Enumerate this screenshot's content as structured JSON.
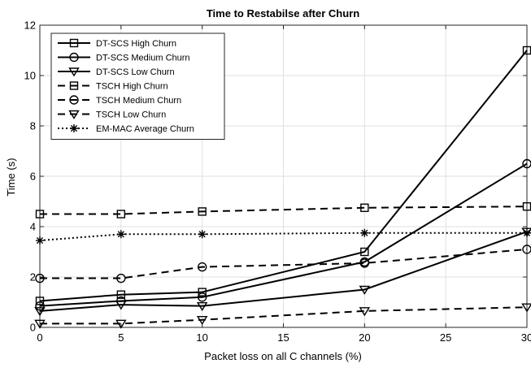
{
  "chart_data": {
    "type": "line",
    "title": "Time to Restabilse after Churn",
    "xlabel": "Packet loss on all C channels (%)",
    "ylabel": "Time (s)",
    "xlim": [
      0,
      30
    ],
    "ylim": [
      0,
      12
    ],
    "xticks": [
      0,
      5,
      10,
      15,
      20,
      25,
      30
    ],
    "yticks": [
      0,
      2,
      4,
      6,
      8,
      10,
      12
    ],
    "grid": true,
    "legend_position": "top-left",
    "x": [
      0,
      5,
      10,
      20,
      30
    ],
    "series": [
      {
        "name": "DT-SCS High Churn",
        "style": "solid",
        "marker": "square",
        "values": [
          1.05,
          1.3,
          1.4,
          3.0,
          11.0
        ]
      },
      {
        "name": "DT-SCS Medium Churn",
        "style": "solid",
        "marker": "circle",
        "values": [
          0.85,
          1.05,
          1.2,
          2.6,
          6.5
        ]
      },
      {
        "name": "DT-SCS Low Churn",
        "style": "solid",
        "marker": "triangle",
        "values": [
          0.65,
          0.9,
          0.85,
          1.5,
          3.8
        ]
      },
      {
        "name": "TSCH High Churn",
        "style": "dashed",
        "marker": "square",
        "values": [
          4.5,
          4.5,
          4.6,
          4.75,
          4.8
        ]
      },
      {
        "name": "TSCH Medium Churn",
        "style": "dashed",
        "marker": "circle",
        "values": [
          1.95,
          1.95,
          2.4,
          2.55,
          3.1
        ]
      },
      {
        "name": "TSCH Low Churn",
        "style": "dashed",
        "marker": "triangle",
        "values": [
          0.15,
          0.15,
          0.3,
          0.65,
          0.8
        ]
      },
      {
        "name": "EM-MAC Average Churn",
        "style": "dotted",
        "marker": "asterisk",
        "values": [
          3.45,
          3.7,
          3.7,
          3.75,
          3.75
        ]
      }
    ]
  }
}
